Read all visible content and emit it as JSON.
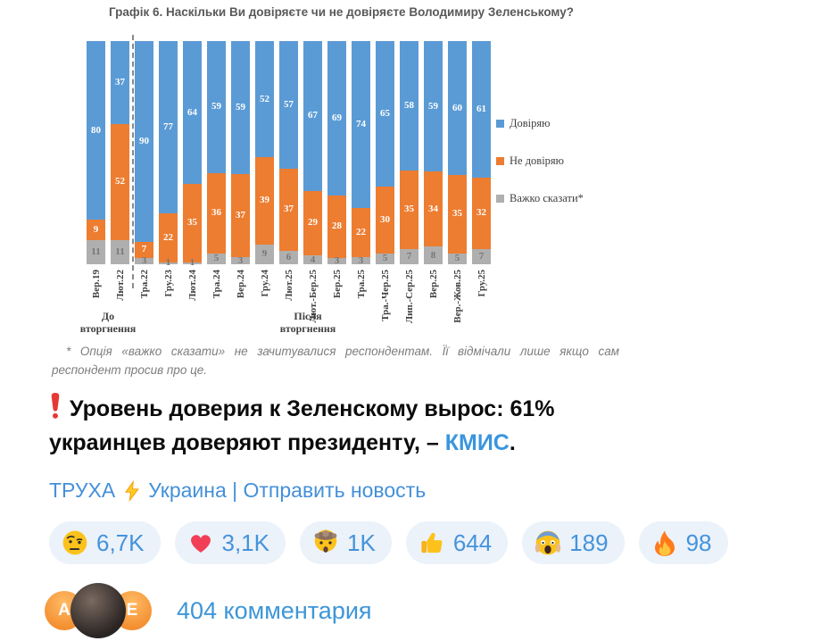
{
  "chart_data": {
    "type": "bar",
    "stacked": true,
    "percent_stacked": true,
    "title": "Графік 6. Наскільки Ви довіряєте чи не довіряєте Володимиру Зеленському?",
    "categories": [
      "Вер.19",
      "Лют.22",
      "Тра.22",
      "Гру.23",
      "Лют.24",
      "Тра.24",
      "Вер.24",
      "Гру.24",
      "Лют.25",
      "Лют.-Бер.25",
      "Бер.25",
      "Тра.25",
      "Тра.-Чер.25",
      "Лип.-Сер.25",
      "Вер.25",
      "Вер.-Жов.25",
      "Гру.25"
    ],
    "series": [
      {
        "name": "Довіряю",
        "color": "#5B9BD5",
        "label_color": "#ffffff",
        "values": [
          80,
          37,
          90,
          77,
          64,
          59,
          59,
          52,
          57,
          67,
          69,
          74,
          65,
          58,
          59,
          60,
          61
        ]
      },
      {
        "name": "Не довіряю",
        "color": "#ED7D31",
        "label_color": "#ffffff",
        "values": [
          9,
          52,
          7,
          22,
          35,
          36,
          37,
          39,
          37,
          29,
          28,
          22,
          30,
          35,
          34,
          35,
          32
        ]
      },
      {
        "name": "Важко сказати*",
        "color": "#AFAFAF",
        "label_color": "#767676",
        "values": [
          11,
          11,
          3,
          1,
          1,
          5,
          3,
          9,
          6,
          4,
          3,
          3,
          5,
          7,
          8,
          5,
          7
        ]
      }
    ],
    "ylim": [
      0,
      100
    ],
    "grid": false,
    "legend_position": "right",
    "divider_after_index": 1,
    "group_labels": [
      "До вторгнення",
      "Після вторгнення"
    ],
    "footnote": "* Опція «важко сказати» не зачитувалися респондентам. Її відмічали лише якщо сам респондент просив про це."
  },
  "post": {
    "text": "Уровень доверия к Зеленскому вырос: 61% украинцев доверяют президенту, – ",
    "link_text": "КМИС",
    "suffix": "."
  },
  "channel": {
    "name": "ТРУХА",
    "rest": "Украина | Отправить новость"
  },
  "reactions": [
    {
      "icon": "raised-eyebrow-emoji",
      "count": "6,7K"
    },
    {
      "icon": "heart-emoji",
      "count": "3,1K"
    },
    {
      "icon": "exploding-head-emoji",
      "count": "1K"
    },
    {
      "icon": "thumbs-up-emoji",
      "count": "644"
    },
    {
      "icon": "screaming-face-emoji",
      "count": "189"
    },
    {
      "icon": "fire-emoji",
      "count": "98"
    }
  ],
  "comments": {
    "label": "404 комментария",
    "avatar_initials": [
      "A",
      "E"
    ]
  },
  "colors": {
    "trust_blue": "#5B9BD5",
    "distrust_orange": "#ED7D31",
    "hard_to_say_gray": "#AFAFAF",
    "telegram_blue": "#4593db",
    "pill_background": "#ebf2fa",
    "link_blue": "#3a95de",
    "exclamation_red": "#e53935"
  }
}
